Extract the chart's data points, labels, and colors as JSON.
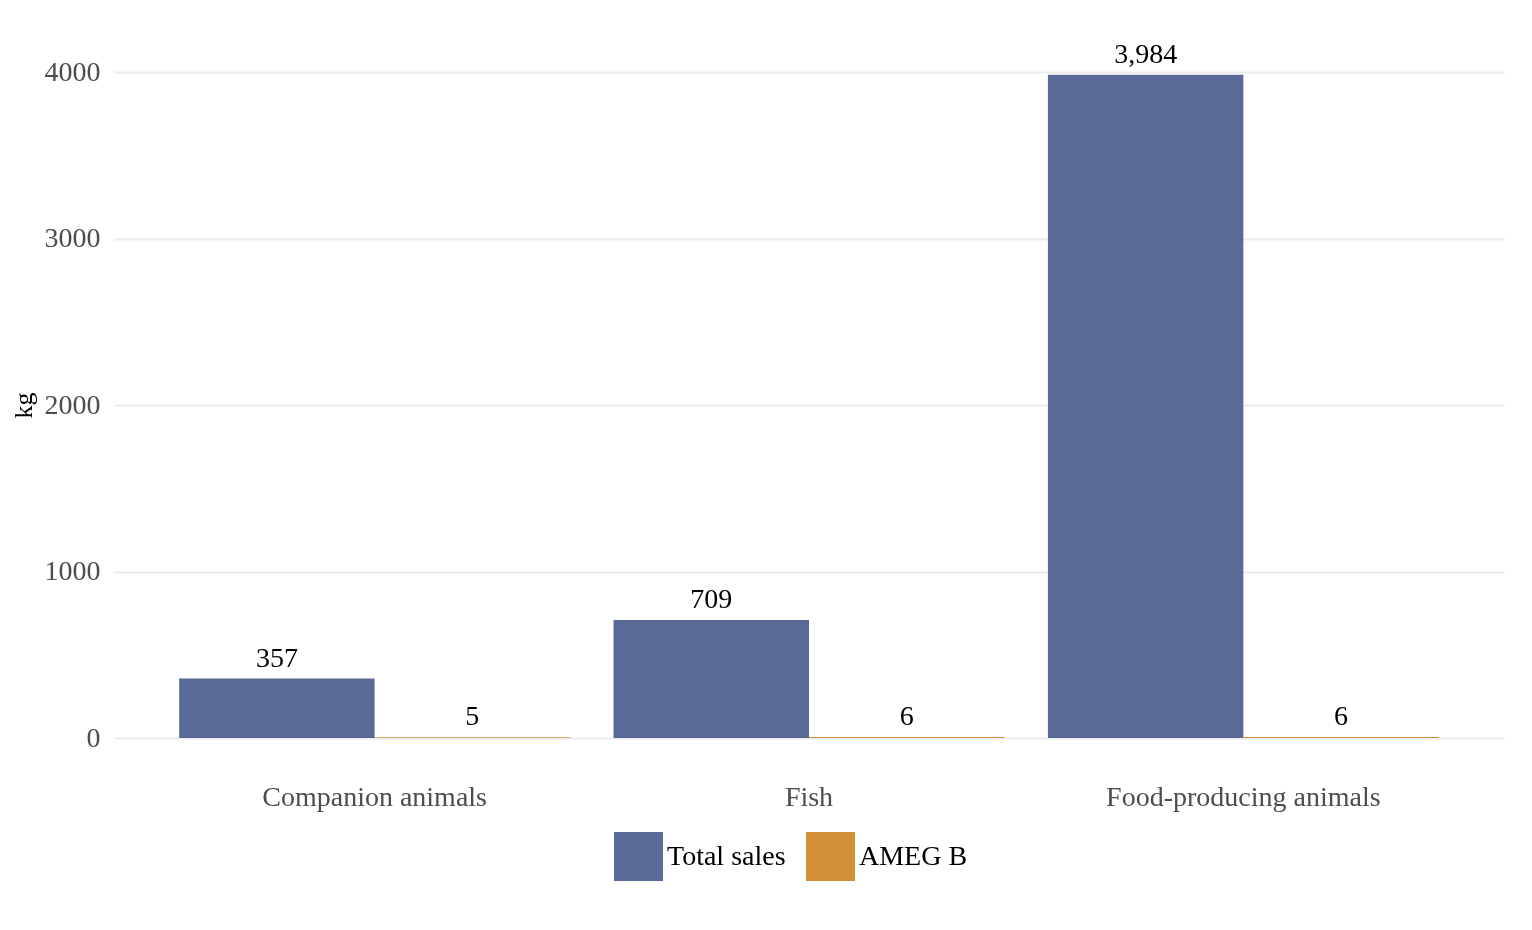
{
  "chart_data": {
    "type": "bar",
    "ylabel": "kg",
    "categories": [
      "Companion animals",
      "Fish",
      "Food-producing animals"
    ],
    "series": [
      {
        "name": "Total sales",
        "color": "#5a6a98",
        "values": [
          357,
          709,
          3984
        ],
        "value_labels": [
          "357",
          "709",
          "3,984"
        ]
      },
      {
        "name": "AMEG B",
        "color": "#d38f35",
        "values": [
          5,
          6,
          6
        ],
        "value_labels": [
          "5",
          "6",
          "6"
        ]
      }
    ],
    "ylim": [
      0,
      4000
    ],
    "yticks": [
      0,
      1000,
      2000,
      3000,
      4000
    ],
    "grid": "y",
    "legend": "bottom"
  }
}
